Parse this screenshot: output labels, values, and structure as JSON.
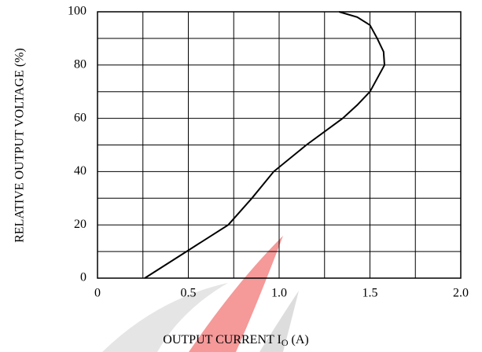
{
  "chart_data": {
    "type": "line",
    "xlabel": {
      "text": "OUTPUT CURRENT I",
      "subscript": "O",
      "unit": "(A)"
    },
    "ylabel": "RELATIVE OUTPUT VOLTAGE  (%)",
    "series": [
      {
        "color": "#000000",
        "x": [
          0.26,
          0.49,
          0.72,
          0.85,
          0.97,
          1.15,
          1.35,
          1.43,
          1.5,
          1.58,
          1.575,
          1.54,
          1.5,
          1.43,
          1.33
        ],
        "values": [
          0,
          10,
          20,
          30,
          40,
          50,
          60,
          65,
          70,
          80,
          85,
          90,
          95,
          98,
          100
        ]
      }
    ],
    "xlim": [
      0,
      2
    ],
    "ylim": [
      0,
      100
    ],
    "xticks": [
      0,
      0.5,
      {
        "value": 1,
        "label": "1.0"
      },
      1.5,
      {
        "value": 2,
        "label": "2.0"
      }
    ],
    "yticks": [
      0,
      20,
      40,
      60,
      80,
      100
    ],
    "xgrid": [
      0.25,
      0.5,
      0.75,
      1,
      1.25,
      1.5,
      1.75
    ],
    "ygrid": [
      10,
      20,
      30,
      40,
      50,
      60,
      70,
      80,
      90
    ],
    "grid": true
  }
}
